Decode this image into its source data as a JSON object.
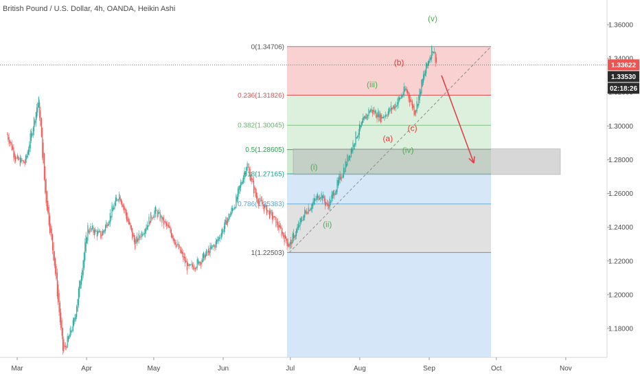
{
  "header": {
    "title": "British Pound / U.S. Dollar, 4h, OANDA, Heikin Ashi"
  },
  "colors": {
    "up": "#26a69a",
    "down": "#ef5350",
    "wave_green": "#4caf50",
    "wave_red": "#e53935",
    "fib_red": "#f8c9c9",
    "fib_green": "#d7ecd7",
    "fib_green_mid": "#c8e6c9",
    "fib_blue": "#cfe3f6",
    "fib_grey": "#dcdcdc",
    "target_box": "#bdbdbd",
    "arrow": "#e0404a"
  },
  "chart_data": {
    "type": "candlestick",
    "title": "British Pound / U.S. Dollar, 4h, OANDA, Heikin Ashi",
    "x_ticks": [
      "Mar",
      "Apr",
      "May",
      "Jun",
      "Jul",
      "Aug",
      "Sep",
      "Oct",
      "Nov"
    ],
    "y_ticks": [
      "1.36000",
      "1.34000",
      "1.32000",
      "1.30000",
      "1.28000",
      "1.26000",
      "1.24000",
      "1.22000",
      "1.20000",
      "1.18000"
    ],
    "y_tick_values": [
      1.36,
      1.34,
      1.32,
      1.3,
      1.28,
      1.26,
      1.24,
      1.22,
      1.2,
      1.18
    ],
    "ylim": [
      1.159,
      1.381
    ],
    "price_path": [
      {
        "date": "2020-02-24",
        "price": 1.295
      },
      {
        "date": "2020-02-28",
        "price": 1.28
      },
      {
        "date": "2020-03-03",
        "price": 1.278
      },
      {
        "date": "2020-03-09",
        "price": 1.316
      },
      {
        "date": "2020-03-12",
        "price": 1.26
      },
      {
        "date": "2020-03-16",
        "price": 1.22
      },
      {
        "date": "2020-03-20",
        "price": 1.165
      },
      {
        "date": "2020-03-25",
        "price": 1.185
      },
      {
        "date": "2020-03-31",
        "price": 1.24
      },
      {
        "date": "2020-04-06",
        "price": 1.235
      },
      {
        "date": "2020-04-14",
        "price": 1.26
      },
      {
        "date": "2020-04-21",
        "price": 1.23
      },
      {
        "date": "2020-04-30",
        "price": 1.25
      },
      {
        "date": "2020-05-07",
        "price": 1.237
      },
      {
        "date": "2020-05-15",
        "price": 1.215
      },
      {
        "date": "2020-05-20",
        "price": 1.22
      },
      {
        "date": "2020-05-27",
        "price": 1.23
      },
      {
        "date": "2020-06-05",
        "price": 1.255
      },
      {
        "date": "2020-06-10",
        "price": 1.278
      },
      {
        "date": "2020-06-14",
        "price": 1.258
      },
      {
        "date": "2020-06-22",
        "price": 1.245
      },
      {
        "date": "2020-06-29",
        "price": 1.229
      },
      {
        "date": "2020-07-06",
        "price": 1.249
      },
      {
        "date": "2020-07-13",
        "price": 1.26
      },
      {
        "date": "2020-07-16",
        "price": 1.252
      },
      {
        "date": "2020-07-22",
        "price": 1.27
      },
      {
        "date": "2020-07-29",
        "price": 1.295
      },
      {
        "date": "2020-08-04",
        "price": 1.31
      },
      {
        "date": "2020-08-09",
        "price": 1.305
      },
      {
        "date": "2020-08-15",
        "price": 1.312
      },
      {
        "date": "2020-08-20",
        "price": 1.322
      },
      {
        "date": "2020-08-24",
        "price": 1.308
      },
      {
        "date": "2020-08-28",
        "price": 1.33
      },
      {
        "date": "2020-09-01",
        "price": 1.347
      },
      {
        "date": "2020-09-03",
        "price": 1.3362
      }
    ],
    "fib_levels": [
      {
        "label": "0(1.34706)",
        "value": 1.34706
      },
      {
        "label": "0.236(1.31826)",
        "value": 1.31826
      },
      {
        "label": "0.382(1.30045)",
        "value": 1.30045
      },
      {
        "label": "0.5(1.28605)",
        "value": 1.28605
      },
      {
        "label": "618(1.27165)",
        "value": 1.27165
      },
      {
        "label": "0.786(1.25383)",
        "value": 1.25383
      },
      {
        "label": "1(1.22503)",
        "value": 1.22503
      }
    ],
    "wave_labels": [
      {
        "label": "(i)",
        "date": "2020-07-10",
        "price": 1.274,
        "color": "green"
      },
      {
        "label": "(ii)",
        "date": "2020-07-16",
        "price": 1.24,
        "color": "green"
      },
      {
        "label": "(iii)",
        "date": "2020-08-05",
        "price": 1.323,
        "color": "green"
      },
      {
        "label": "(iv)",
        "date": "2020-08-21",
        "price": 1.284,
        "color": "green"
      },
      {
        "label": "(v)",
        "date": "2020-09-01",
        "price": 1.362,
        "color": "green"
      },
      {
        "label": "(a)",
        "date": "2020-08-12",
        "price": 1.291,
        "color": "red"
      },
      {
        "label": "(b)",
        "date": "2020-08-17",
        "price": 1.336,
        "color": "red"
      },
      {
        "label": "(c)",
        "date": "2020-08-23",
        "price": 1.297,
        "color": "red"
      }
    ],
    "last_price": {
      "label": "1.33622",
      "value": 1.33622
    },
    "prev_close": {
      "label": "1.33530",
      "value": 1.3353
    },
    "countdown": "02:18:26"
  }
}
